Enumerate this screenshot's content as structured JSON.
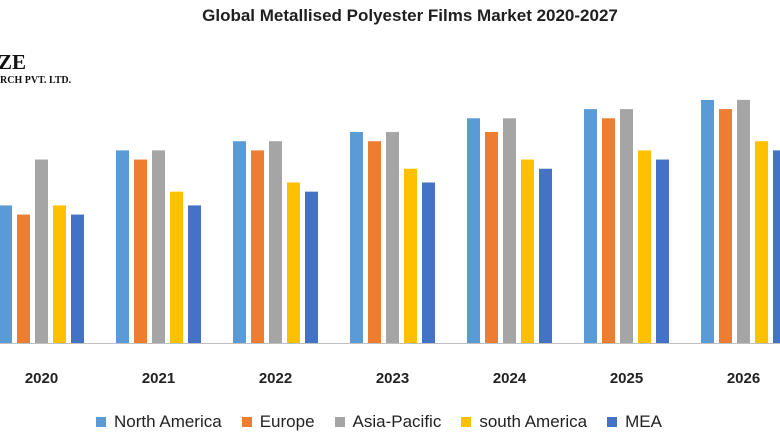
{
  "title": "Global Metallised Polyester Films Market 2020-2027",
  "logo": {
    "main": "ZE",
    "sub": "RCH PVT. LTD."
  },
  "chart_data": {
    "type": "bar",
    "title": "Global Metallised Polyester Films Market 2020-2027",
    "xlabel": "",
    "ylabel": "",
    "categories": [
      "2020",
      "2021",
      "2022",
      "2023",
      "2024",
      "2025",
      "2026"
    ],
    "series": [
      {
        "name": "North America",
        "color": "#5b9bd5",
        "values": [
          150,
          210,
          220,
          230,
          245,
          255,
          265
        ]
      },
      {
        "name": "Europe",
        "color": "#ed7d31",
        "values": [
          140,
          200,
          210,
          220,
          230,
          245,
          255
        ]
      },
      {
        "name": "Asia-Pacific",
        "color": "#a5a5a5",
        "values": [
          200,
          210,
          220,
          230,
          245,
          255,
          265
        ]
      },
      {
        "name": "south America",
        "color": "#ffc000",
        "values": [
          150,
          165,
          175,
          190,
          200,
          210,
          220
        ]
      },
      {
        "name": "MEA",
        "color": "#4472c4",
        "values": [
          140,
          150,
          165,
          175,
          190,
          200,
          210
        ]
      }
    ],
    "ylim": [
      0,
      290
    ],
    "grid": false,
    "legend": "bottom"
  }
}
